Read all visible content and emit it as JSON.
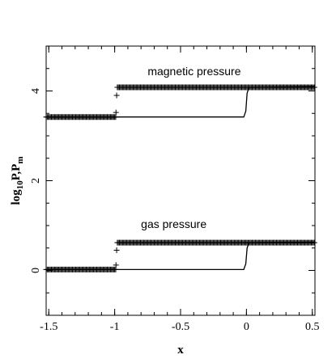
{
  "chart_data": {
    "type": "line",
    "title": "",
    "xlabel": "x",
    "ylabel": "log10P, Pm",
    "ylabel_parts": {
      "base": "log",
      "sub": "10",
      "mid": "P,P",
      "sub2": "m"
    },
    "xlim": [
      -1.52,
      0.52
    ],
    "ylim": [
      -1.0,
      5.0
    ],
    "x_ticks": [
      -1.5,
      -1.0,
      -0.5,
      0.0,
      0.5
    ],
    "x_tick_labels": [
      "-1.5",
      "-1",
      "-0.5",
      "0",
      "0.5"
    ],
    "y_ticks": [
      0,
      2,
      4
    ],
    "y_tick_labels": [
      "0",
      "2",
      "4"
    ],
    "grid": false,
    "annotations": [
      {
        "text": "magnetic pressure",
        "x": -0.75,
        "y": 4.35
      },
      {
        "text": "gas pressure",
        "x": -0.8,
        "y": 0.95
      }
    ],
    "series": [
      {
        "kind": "line",
        "x": [
          -1.52,
          -0.02,
          -0.005,
          0.005,
          0.02,
          0.52
        ],
        "y": [
          3.42,
          3.42,
          3.55,
          3.95,
          4.08,
          4.1
        ]
      },
      {
        "kind": "markers",
        "x": [
          -1.52,
          -0.985,
          -0.985,
          -0.98,
          0.52
        ],
        "y": [
          3.42,
          3.42,
          3.55,
          4.08,
          4.08
        ],
        "dense_segments": [
          {
            "x_from": -1.52,
            "x_to": -0.985,
            "y": 3.42
          },
          {
            "x_from": -0.98,
            "x_to": 0.52,
            "y": 4.08
          }
        ],
        "transition_points": [
          {
            "x": -0.99,
            "y": 3.52
          },
          {
            "x": -0.985,
            "y": 3.9
          }
        ]
      },
      {
        "kind": "line",
        "x": [
          -1.52,
          -0.02,
          -0.005,
          0.005,
          0.02,
          0.52
        ],
        "y": [
          0.02,
          0.02,
          0.15,
          0.5,
          0.62,
          0.63
        ]
      },
      {
        "kind": "markers",
        "dense_segments": [
          {
            "x_from": -1.52,
            "x_to": -0.985,
            "y": 0.02
          },
          {
            "x_from": -0.98,
            "x_to": 0.52,
            "y": 0.62
          }
        ],
        "transition_points": [
          {
            "x": -0.99,
            "y": 0.12
          },
          {
            "x": -0.985,
            "y": 0.45
          }
        ]
      }
    ]
  }
}
